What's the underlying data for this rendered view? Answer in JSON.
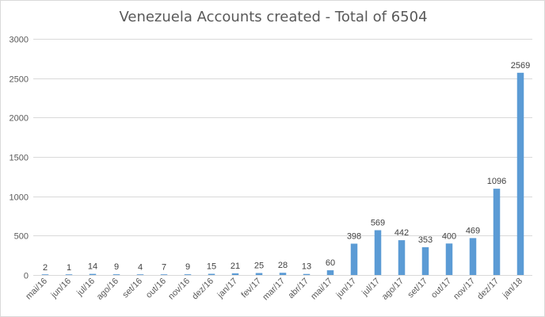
{
  "chart_data": {
    "type": "bar",
    "title": "Venezuela Accounts created - Total of 6504",
    "xlabel": "",
    "ylabel": "",
    "categories": [
      "mai/16",
      "jun/16",
      "jul/16",
      "ago/16",
      "set/16",
      "out/16",
      "nov/16",
      "dez/16",
      "jan/17",
      "fev/17",
      "mar/17",
      "abr/17",
      "mai/17",
      "jun/17",
      "jul/17",
      "ago/17",
      "set/17",
      "out/17",
      "nov/17",
      "dez/17",
      "jan/18"
    ],
    "values": [
      2,
      1,
      14,
      9,
      4,
      7,
      9,
      15,
      21,
      25,
      28,
      13,
      60,
      398,
      569,
      442,
      353,
      400,
      469,
      1096,
      2569
    ],
    "ylim": [
      0,
      3000
    ],
    "yticks": [
      0,
      500,
      1000,
      1500,
      2000,
      2500,
      3000
    ],
    "grid": true,
    "legend": "none",
    "bar_color": "#5b9bd5",
    "grid_color": "#d9d9d9"
  }
}
